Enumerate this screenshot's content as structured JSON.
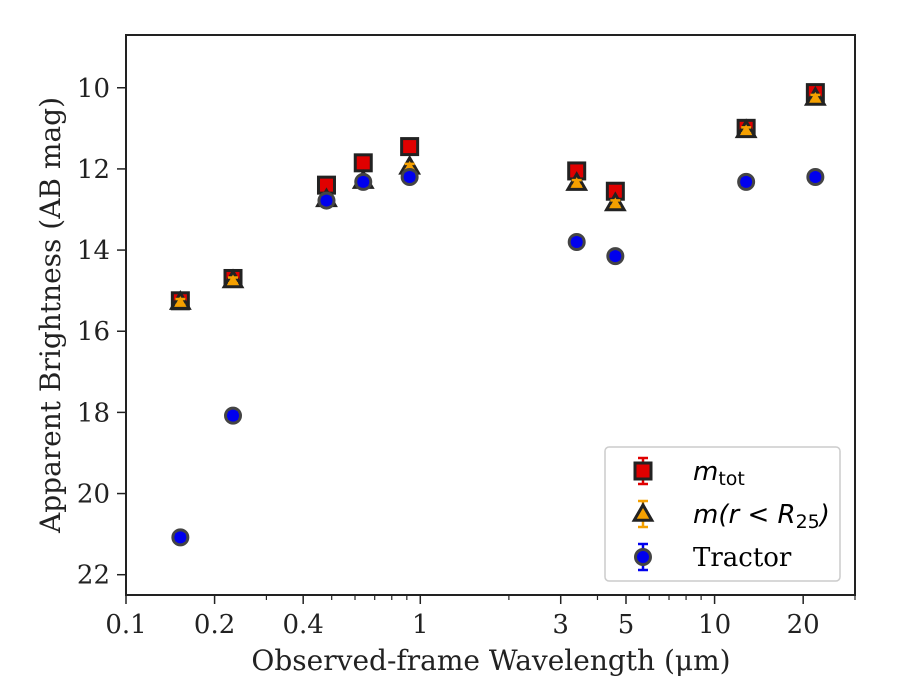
{
  "chart_data": {
    "type": "scatter",
    "title": "",
    "xlabel": "Observed-frame Wavelength (μm)",
    "ylabel": "Apparent Brightness (AB mag)",
    "xscale": "log",
    "xlim": [
      0.1,
      30
    ],
    "ylim": [
      22.5,
      8.7
    ],
    "y_inverted": true,
    "xticks": [
      {
        "value": 0.1,
        "label": "0.1"
      },
      {
        "value": 0.2,
        "label": "0.2"
      },
      {
        "value": 0.4,
        "label": "0.4"
      },
      {
        "value": 1,
        "label": "1"
      },
      {
        "value": 3,
        "label": "3"
      },
      {
        "value": 5,
        "label": "5"
      },
      {
        "value": 10,
        "label": "10"
      },
      {
        "value": 20,
        "label": "20"
      }
    ],
    "yticks": [
      {
        "value": 10,
        "label": "10"
      },
      {
        "value": 12,
        "label": "12"
      },
      {
        "value": 14,
        "label": "14"
      },
      {
        "value": 16,
        "label": "16"
      },
      {
        "value": 18,
        "label": "18"
      },
      {
        "value": 20,
        "label": "20"
      },
      {
        "value": 22,
        "label": "22"
      }
    ],
    "grid": false,
    "legend_position": "bottom-right",
    "series": [
      {
        "name": "m_tot",
        "marker": "square",
        "color": "#e00000",
        "errcolor": "#e00000",
        "x": [
          0.153,
          0.231,
          0.48,
          0.64,
          0.92,
          3.4,
          4.6,
          12.8,
          22.0
        ],
        "y": [
          15.25,
          14.7,
          12.4,
          11.85,
          11.45,
          12.05,
          12.55,
          11.0,
          10.12
        ]
      },
      {
        "name": "m(r < R_25)",
        "marker": "triangle",
        "color": "#f5a000",
        "errcolor": "#f5a000",
        "x": [
          0.153,
          0.231,
          0.48,
          0.64,
          0.92,
          3.4,
          4.6,
          12.8,
          22.0
        ],
        "y": [
          15.28,
          14.75,
          12.75,
          12.3,
          11.95,
          12.35,
          12.85,
          11.05,
          10.25
        ]
      },
      {
        "name": "Tractor",
        "marker": "circle",
        "color": "#0000ee",
        "errcolor": "#0000ee",
        "x": [
          0.153,
          0.231,
          0.48,
          0.64,
          0.92,
          3.4,
          4.6,
          12.8,
          22.0
        ],
        "y": [
          21.08,
          18.08,
          12.78,
          12.32,
          12.2,
          13.8,
          14.15,
          12.32,
          12.2
        ]
      }
    ],
    "legend": {
      "entries": [
        {
          "series": 0,
          "parts": [
            {
              "t": "m",
              "style": "math"
            },
            {
              "t": "tot",
              "style": "sub"
            }
          ]
        },
        {
          "series": 1,
          "parts": [
            {
              "t": "m",
              "style": "math"
            },
            {
              "t": "(",
              "style": "plain"
            },
            {
              "t": "r",
              "style": "math"
            },
            {
              "t": " < ",
              "style": "plain"
            },
            {
              "t": "R",
              "style": "math"
            },
            {
              "t": "25",
              "style": "sub"
            },
            {
              "t": ")",
              "style": "plain"
            }
          ]
        },
        {
          "series": 2,
          "parts": [
            {
              "t": "Tractor",
              "style": "serif"
            }
          ]
        }
      ]
    }
  }
}
